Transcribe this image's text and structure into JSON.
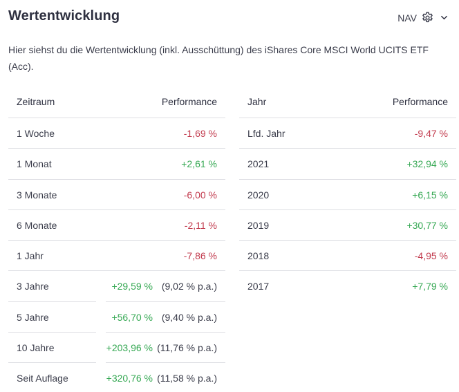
{
  "header": {
    "title": "Wertentwicklung",
    "nav_label": "NAV"
  },
  "description": "Hier siehst du die Wertentwicklung (inkl. Ausschüttung) des iShares Core MSCI World UCITS ETF (Acc).",
  "period_table": {
    "col_period": "Zeitraum",
    "col_performance": "Performance",
    "rows": [
      {
        "label": "1 Woche",
        "value": "-1,69 %",
        "pa": ""
      },
      {
        "label": "1 Monat",
        "value": "+2,61 %",
        "pa": ""
      },
      {
        "label": "3 Monate",
        "value": "-6,00 %",
        "pa": ""
      },
      {
        "label": "6 Monate",
        "value": "-2,11 %",
        "pa": ""
      },
      {
        "label": "1 Jahr",
        "value": "-7,86 %",
        "pa": ""
      },
      {
        "label": "3 Jahre",
        "value": "+29,59 %",
        "pa": "(9,02 % p.a.)"
      },
      {
        "label": "5 Jahre",
        "value": "+56,70 %",
        "pa": "(9,40 % p.a.)"
      },
      {
        "label": "10 Jahre",
        "value": "+203,96 %",
        "pa": "(11,76 % p.a.)"
      },
      {
        "label": "Seit Auflage",
        "value": "+320,76 %",
        "pa": "(11,58 % p.a.)"
      }
    ]
  },
  "year_table": {
    "col_year": "Jahr",
    "col_performance": "Performance",
    "rows": [
      {
        "label": "Lfd. Jahr",
        "value": "-9,47 %"
      },
      {
        "label": "2021",
        "value": "+32,94 %"
      },
      {
        "label": "2020",
        "value": "+6,15 %"
      },
      {
        "label": "2019",
        "value": "+30,77 %"
      },
      {
        "label": "2018",
        "value": "-4,95 %"
      },
      {
        "label": "2017",
        "value": "+7,79 %"
      }
    ]
  },
  "colors": {
    "negative": "#c23b4e",
    "positive": "#35a853",
    "text": "#2e3040",
    "divider": "#dddee3"
  },
  "icons": {
    "settings": "gear-icon",
    "dropdown": "chevron-down-icon"
  }
}
